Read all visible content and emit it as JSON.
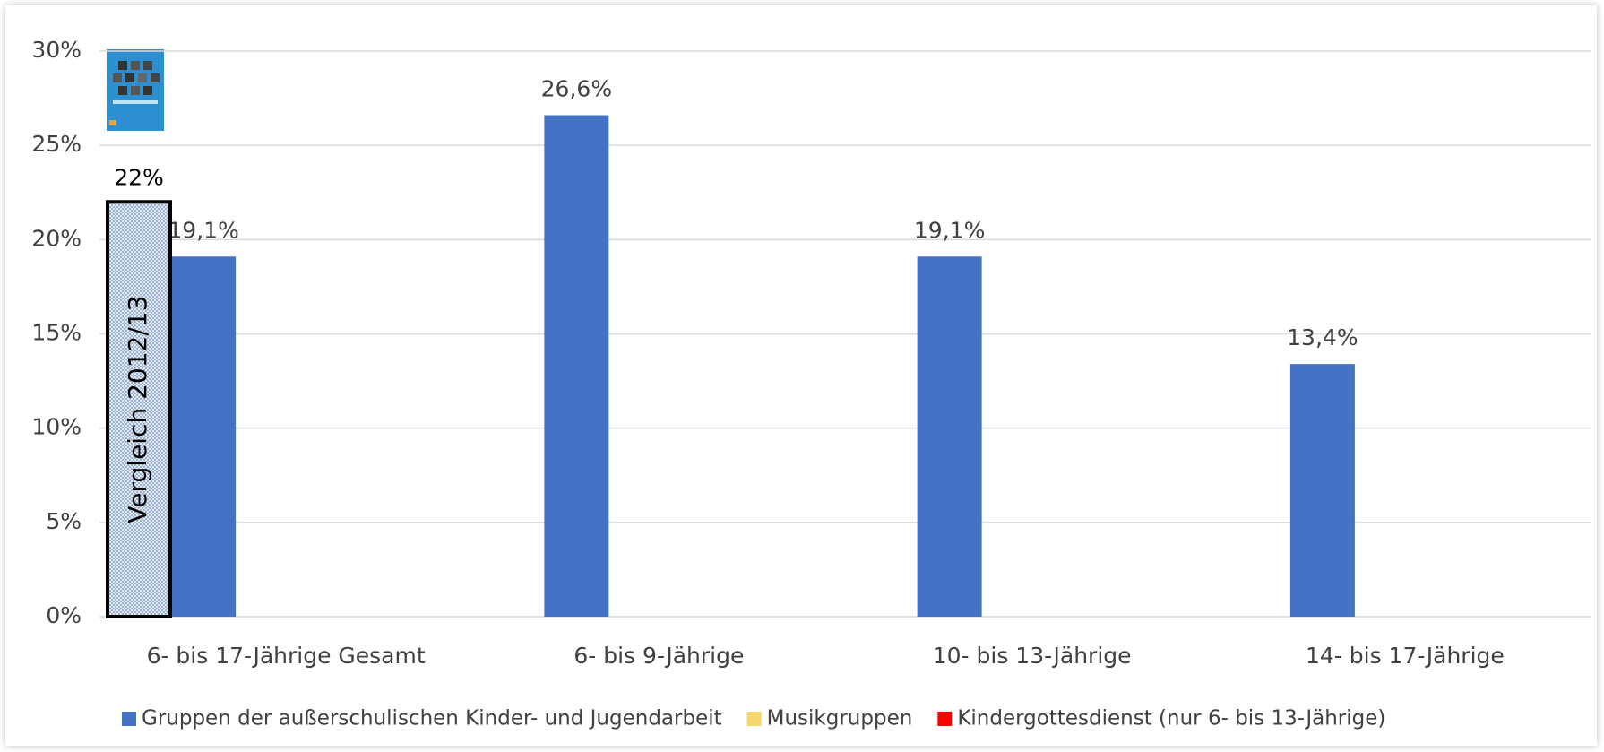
{
  "chart_data": {
    "type": "bar",
    "categories": [
      "6- bis 17-Jährige Gesamt",
      "6- bis 9-Jährige",
      "10- bis 13-Jährige",
      "14- bis 17-Jährige"
    ],
    "series": [
      {
        "name": "Gruppen der außerschulischen Kinder- und Jugendarbeit",
        "color": "#4472c4",
        "values": [
          19.1,
          26.6,
          19.1,
          13.4
        ],
        "value_labels": [
          "19,1%",
          "26,6%",
          "19,1%",
          "13,4%"
        ]
      },
      {
        "name": "Musikgruppen",
        "color": "#f5d76e",
        "values": [
          null,
          null,
          null,
          null
        ]
      },
      {
        "name": "Kindergottesdienst (nur 6- bis 13-Jährige)",
        "color": "#ff0000",
        "values": [
          null,
          null,
          null,
          null
        ]
      }
    ],
    "ylim": [
      0,
      30
    ],
    "yticks": [
      {
        "value": 0,
        "label": "0%"
      },
      {
        "value": 5,
        "label": "5%"
      },
      {
        "value": 10,
        "label": "10%"
      },
      {
        "value": 15,
        "label": "15%"
      },
      {
        "value": 20,
        "label": "20%"
      },
      {
        "value": 25,
        "label": "25%"
      },
      {
        "value": 30,
        "label": "30%"
      }
    ],
    "grid": true,
    "legend": "bottom",
    "annotations": [
      {
        "label": "Vergleich 2012/13",
        "value": 22,
        "value_label": "22%"
      }
    ]
  }
}
